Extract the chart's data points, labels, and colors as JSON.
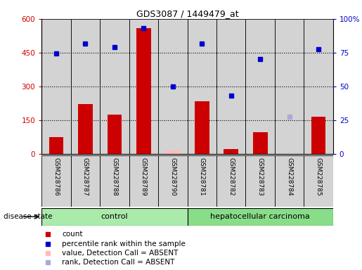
{
  "title": "GDS3087 / 1449479_at",
  "samples": [
    "GSM228786",
    "GSM228787",
    "GSM228788",
    "GSM228789",
    "GSM228790",
    "GSM228781",
    "GSM228782",
    "GSM228783",
    "GSM228784",
    "GSM228785"
  ],
  "bar_values": [
    75,
    220,
    175,
    560,
    null,
    235,
    20,
    95,
    null,
    165
  ],
  "bar_absent": [
    null,
    null,
    null,
    null,
    15,
    null,
    null,
    null,
    null,
    null
  ],
  "dot_values_left": [
    445,
    490,
    475,
    560,
    300,
    490,
    260,
    420,
    null,
    465
  ],
  "dot_absent_left": [
    null,
    null,
    null,
    null,
    null,
    null,
    null,
    null,
    165,
    null
  ],
  "ylim_left": [
    0,
    600
  ],
  "ylim_right": [
    0,
    100
  ],
  "yticks_left": [
    0,
    150,
    300,
    450,
    600
  ],
  "yticks_right": [
    0,
    25,
    50,
    75,
    100
  ],
  "ytick_labels_left": [
    "0",
    "150",
    "300",
    "450",
    "600"
  ],
  "ytick_labels_right": [
    "0",
    "25",
    "50",
    "75",
    "100%"
  ],
  "bar_color": "#cc0000",
  "bar_absent_color": "#ffbbbb",
  "dot_color": "#0000cc",
  "dot_absent_color": "#aaaadd",
  "bg_color": "#d3d3d3",
  "control_color": "#aaeaaa",
  "cancer_color": "#88dd88",
  "n_control": 5,
  "n_cancer": 5,
  "legend_items": [
    {
      "label": "count",
      "color": "#cc0000"
    },
    {
      "label": "percentile rank within the sample",
      "color": "#0000cc"
    },
    {
      "label": "value, Detection Call = ABSENT",
      "color": "#ffbbbb"
    },
    {
      "label": "rank, Detection Call = ABSENT",
      "color": "#aaaadd"
    }
  ]
}
